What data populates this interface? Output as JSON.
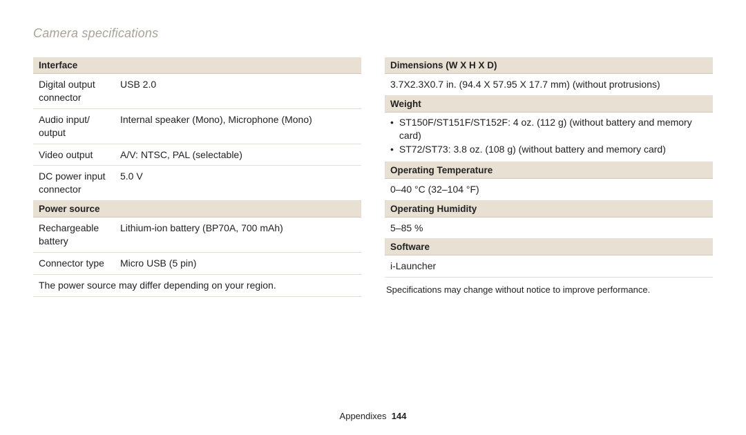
{
  "title": "Camera specifications",
  "left": {
    "interface_header": "Interface",
    "interface": [
      {
        "label": "Digital output connector",
        "value": "USB 2.0"
      },
      {
        "label": "Audio input/ output",
        "value": "Internal speaker (Mono), Microphone (Mono)"
      },
      {
        "label": "Video output",
        "value": "A/V: NTSC, PAL (selectable)"
      },
      {
        "label": "DC power input connector",
        "value": "5.0 V"
      }
    ],
    "power_header": "Power source",
    "power": [
      {
        "label": "Rechargeable battery",
        "value": "Lithium-ion battery (BP70A, 700 mAh)"
      },
      {
        "label": "Connector type",
        "value": "Micro USB (5 pin)"
      }
    ],
    "power_note": "The power source may differ depending on your region."
  },
  "right": {
    "dimensions_header": "Dimensions (W X H X D)",
    "dimensions_value": "3.7X2.3X0.7 in. (94.4 X 57.95 X 17.7 mm) (without protrusions)",
    "weight_header": "Weight",
    "weight_bullets": [
      "ST150F/ST151F/ST152F: 4 oz. (112 g) (without battery and memory card)",
      "ST72/ST73: 3.8 oz. (108 g) (without battery and memory card)"
    ],
    "optemp_header": "Operating Temperature",
    "optemp_value": "0–40 °C (32–104 °F)",
    "ophum_header": "Operating Humidity",
    "ophum_value": "5–85 %",
    "software_header": "Software",
    "software_value": "i-Launcher",
    "note": "Specifications may change without notice to improve performance."
  },
  "footer": {
    "section": "Appendixes",
    "page": "144"
  }
}
